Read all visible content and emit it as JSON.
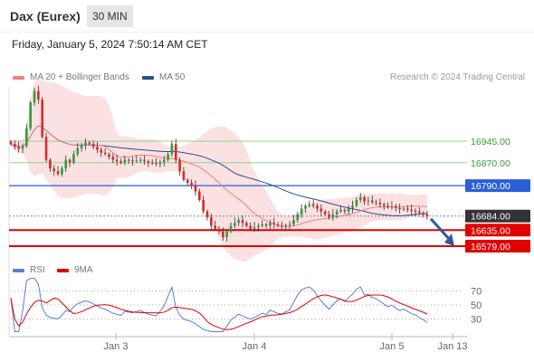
{
  "header": {
    "instrument": "Dax (Eurex)",
    "timeframe": "30 MIN"
  },
  "datetime": "Friday, January 5, 2024 7:50:14 AM CET",
  "legend_top": [
    {
      "label": "MA 20 + Bollinger Bands",
      "color": "#f08080"
    },
    {
      "label": "MA 50",
      "color": "#2a4d8f"
    }
  ],
  "credit": "Research © 2024 Trading Central",
  "levels": [
    {
      "label": "16945.00",
      "price": 16945,
      "style": "green-text"
    },
    {
      "label": "16870.00",
      "price": 16870,
      "style": "green-text"
    },
    {
      "label": "16790.00",
      "price": 16790,
      "style": "blue-box"
    },
    {
      "label": "16684.00",
      "price": 16684,
      "style": "dark-box"
    },
    {
      "label": "16635.00",
      "price": 16635,
      "style": "red-box"
    },
    {
      "label": "16579.00",
      "price": 16579,
      "style": "red-box"
    }
  ],
  "legend_rsi": [
    {
      "label": "RSI",
      "color": "#5b7fd6"
    },
    {
      "label": "9MA",
      "color": "#e00000"
    }
  ],
  "rsi_ticks": [
    "70",
    "50",
    "30"
  ],
  "x_ticks": [
    "Jan 3",
    "Jan 4",
    "Jan 5",
    "Jan 13"
  ],
  "colors": {
    "up": "#2e9e3e",
    "down": "#d62b2b",
    "band": "#f8c8c8",
    "green_level": "#8fd18f",
    "blue_level": "#2a5fd6",
    "red_level": "#e00000",
    "dark_box": "#333333"
  },
  "chart_data": {
    "type": "candlestick",
    "title": "Dax (Eurex)",
    "timeframe": "30 MIN",
    "x_ticks": [
      "Jan 3",
      "Jan 4",
      "Jan 5",
      "Jan 13"
    ],
    "close": [
      16935,
      16925,
      16918,
      16928,
      16990,
      17080,
      17120,
      17090,
      16960,
      16880,
      16850,
      16840,
      16830,
      16850,
      16880,
      16870,
      16900,
      16920,
      16930,
      16940,
      16935,
      16925,
      16915,
      16905,
      16900,
      16890,
      16880,
      16875,
      16870,
      16880,
      16878,
      16875,
      16878,
      16880,
      16875,
      16870,
      16868,
      16866,
      16872,
      16880,
      16900,
      16935,
      16880,
      16840,
      16810,
      16800,
      16790,
      16770,
      16740,
      16700,
      16680,
      16650,
      16640,
      16630,
      16610,
      16630,
      16650,
      16660,
      16670,
      16660,
      16650,
      16640,
      16645,
      16650,
      16655,
      16650,
      16660,
      16655,
      16650,
      16648,
      16652,
      16655,
      16670,
      16690,
      16710,
      16720,
      16725,
      16720,
      16710,
      16700,
      16690,
      16680,
      16690,
      16700,
      16705,
      16700,
      16710,
      16720,
      16740,
      16750,
      16735,
      16738,
      16732,
      16730,
      16725,
      16720,
      16715,
      16718,
      16712,
      16708,
      16710,
      16706,
      16702,
      16700,
      16695,
      16690,
      16684
    ],
    "levels": [
      16945,
      16870,
      16790,
      16684,
      16635,
      16579
    ],
    "rsi": {
      "ticks": [
        70,
        50,
        30
      ],
      "series": [
        {
          "name": "RSI"
        },
        {
          "name": "9MA"
        }
      ]
    }
  }
}
